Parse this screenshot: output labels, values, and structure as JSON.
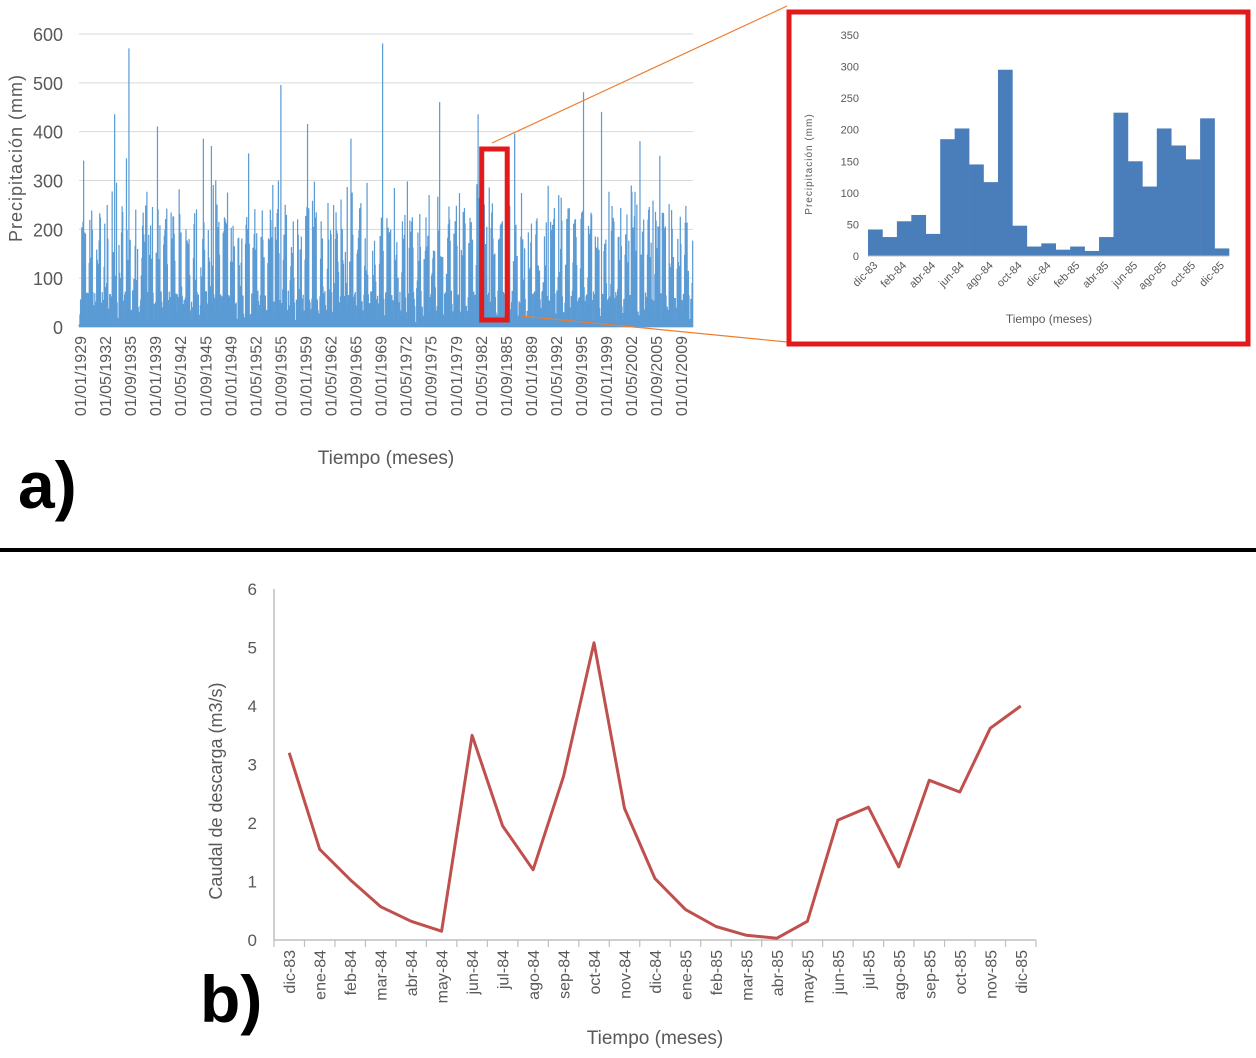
{
  "panels": {
    "a_label": "a)",
    "b_label": "b)"
  },
  "colors": {
    "bar_light": "#5b9bd5",
    "bar_dark": "#4a7ebb",
    "line_red": "#c0504d",
    "highlight": "#e31a1c",
    "connector": "#ed7d31",
    "grid": "#d9d9d9",
    "axis_text": "#595959"
  },
  "chart_data": [
    {
      "id": "monthly-precipitation",
      "type": "bar",
      "xlabel": "Tiempo (meses)",
      "ylabel": "Precipitación (mm)",
      "ylim": [
        0,
        600
      ],
      "yticks": [
        0,
        100,
        200,
        300,
        400,
        500,
        600
      ],
      "grid": true,
      "x_start": "1929-01",
      "x_end": "2011-06",
      "xtick_labels": [
        "01/01/1929",
        "01/05/1932",
        "01/09/1935",
        "01/01/1939",
        "01/05/1942",
        "01/09/1945",
        "01/01/1949",
        "01/05/1952",
        "01/09/1955",
        "01/01/1959",
        "01/05/1962",
        "01/09/1965",
        "01/01/1969",
        "01/05/1972",
        "01/09/1975",
        "01/01/1979",
        "01/05/1982",
        "01/09/1985",
        "01/01/1989",
        "01/05/1992",
        "01/09/1995",
        "01/01/1999",
        "01/05/2002",
        "01/09/2005",
        "01/01/2009"
      ],
      "peaks": [
        {
          "date": "1929-08",
          "value": 340
        },
        {
          "date": "1933-10",
          "value": 435
        },
        {
          "date": "1935-05",
          "value": 345
        },
        {
          "date": "1935-09",
          "value": 570
        },
        {
          "date": "1939-07",
          "value": 410
        },
        {
          "date": "1945-09",
          "value": 385
        },
        {
          "date": "1946-10",
          "value": 370
        },
        {
          "date": "1951-10",
          "value": 355
        },
        {
          "date": "1956-02",
          "value": 495
        },
        {
          "date": "1959-09",
          "value": 415
        },
        {
          "date": "1965-07",
          "value": 385
        },
        {
          "date": "1969-10",
          "value": 580
        },
        {
          "date": "1977-06",
          "value": 460
        },
        {
          "date": "1982-08",
          "value": 435
        },
        {
          "date": "1987-07",
          "value": 395
        },
        {
          "date": "1996-10",
          "value": 480
        },
        {
          "date": "1999-03",
          "value": 440
        },
        {
          "date": "2004-05",
          "value": 380
        },
        {
          "date": "2007-01",
          "value": 350
        }
      ],
      "highlight": {
        "from": "1983-12",
        "to": "1985-12"
      }
    },
    {
      "id": "zoom-precipitation",
      "type": "bar",
      "xlabel": "Tiempo (meses)",
      "ylabel": "Precipitación (mm)",
      "ylim": [
        0,
        350
      ],
      "yticks": [
        0,
        50,
        100,
        150,
        200,
        250,
        300,
        350
      ],
      "xtick_labels": [
        "dic-83",
        "feb-84",
        "abr-84",
        "jun-84",
        "ago-84",
        "oct-84",
        "dic-84",
        "feb-85",
        "abr-85",
        "jun-85",
        "ago-85",
        "oct-85",
        "dic-85"
      ],
      "values": [
        42,
        30,
        55,
        65,
        35,
        185,
        202,
        145,
        117,
        295,
        48,
        15,
        20,
        10,
        15,
        8,
        30,
        227,
        150,
        110,
        202,
        175,
        153,
        218,
        12
      ]
    },
    {
      "id": "discharge",
      "type": "line",
      "xlabel": "Tiempo (meses)",
      "ylabel": "Caudal de descarga (m3/s)",
      "ylim": [
        0,
        6
      ],
      "yticks": [
        0,
        1,
        2,
        3,
        4,
        5,
        6
      ],
      "grid": false,
      "categories": [
        "dic-83",
        "ene-84",
        "feb-84",
        "mar-84",
        "abr-84",
        "may-84",
        "jun-84",
        "jul-84",
        "ago-84",
        "sep-84",
        "oct-84",
        "nov-84",
        "dic-84",
        "ene-85",
        "feb-85",
        "mar-85",
        "abr-85",
        "may-85",
        "jun-85",
        "jul-85",
        "ago-85",
        "sep-85",
        "oct-85",
        "nov-85",
        "dic-85"
      ],
      "values": [
        3.2,
        1.55,
        1.03,
        0.57,
        0.32,
        0.15,
        3.5,
        1.95,
        1.2,
        2.8,
        5.08,
        2.25,
        1.05,
        0.52,
        0.23,
        0.08,
        0.03,
        0.32,
        2.05,
        2.27,
        1.25,
        2.73,
        2.53,
        3.62,
        4.0
      ]
    }
  ]
}
